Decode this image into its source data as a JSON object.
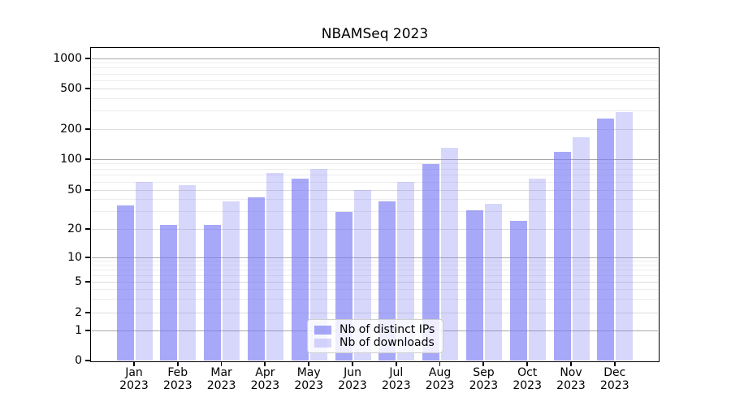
{
  "chart_data": {
    "type": "bar",
    "title": "NBAMSeq 2023",
    "categories": [
      "Jan",
      "Feb",
      "Mar",
      "Apr",
      "May",
      "Jun",
      "Jul",
      "Aug",
      "Sep",
      "Oct",
      "Nov",
      "Dec"
    ],
    "category_year": "2023",
    "series": [
      {
        "name": "Nb of distinct IPs",
        "fill": "rgba(122,122,245,0.65)",
        "values": [
          35,
          22,
          22,
          42,
          65,
          30,
          38,
          90,
          31,
          24,
          118,
          255
        ]
      },
      {
        "name": "Nb of downloads",
        "fill": "rgba(122,122,245,0.30)",
        "values": [
          60,
          56,
          38,
          74,
          80,
          50,
          60,
          130,
          36,
          65,
          165,
          293
        ]
      }
    ],
    "xlabel": "",
    "ylabel": "",
    "yscale": "symlog",
    "y_ticks": [
      0,
      1,
      2,
      5,
      10,
      20,
      50,
      100,
      200,
      500,
      1000
    ],
    "y_minor_ticks": [
      3,
      4,
      6,
      7,
      8,
      9,
      30,
      40,
      60,
      70,
      80,
      90,
      300,
      400,
      600,
      700,
      800,
      900
    ],
    "ylim": [
      0,
      1250
    ],
    "grid": true,
    "legend_position": "lower center"
  },
  "colors": {
    "bar_base": "#7a7af5",
    "ips_fill": "rgba(122,122,245,0.65)",
    "downloads_fill": "rgba(122,122,245,0.30)",
    "grid_major": "#a9a9a9",
    "grid_mid": "#dcdcdc",
    "grid_minor": "#ececec",
    "axis": "#000000"
  }
}
